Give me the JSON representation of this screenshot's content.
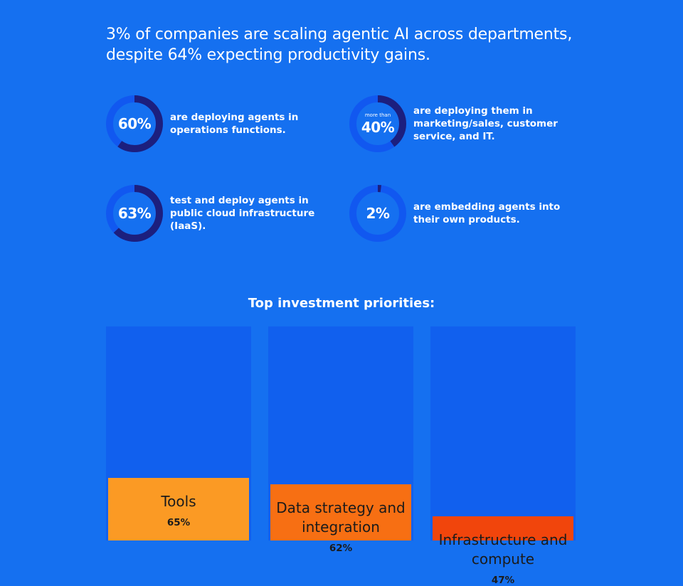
{
  "headline": {
    "line1": "3% of companies are scaling agentic AI across departments,",
    "line2": "despite 64% expecting productivity gains."
  },
  "colors": {
    "background": "#1570f0",
    "ring_track": "#1158f0",
    "ring_fill": "#1c1f7e",
    "bar_track": "#1160ee"
  },
  "stats": [
    {
      "value_label": "60%",
      "prefix": "",
      "fraction": 0.6,
      "description": "are deploying agents in operations functions."
    },
    {
      "value_label": "40%",
      "prefix": "more than",
      "fraction": 0.4,
      "description": "are deploying them in marketing/sales, customer service, and IT."
    },
    {
      "value_label": "63%",
      "prefix": "",
      "fraction": 0.63,
      "description": "test and deploy agents in public cloud infrastructure (IaaS)."
    },
    {
      "value_label": "2%",
      "prefix": "",
      "fraction": 0.02,
      "description": "are embedding agents into their own products."
    }
  ],
  "chart_data": {
    "type": "bar",
    "title": "Top investment priorities:",
    "categories": [
      "Tools",
      "Data strategy and integration",
      "Infrastructure and compute"
    ],
    "values": [
      65,
      62,
      47
    ],
    "value_labels": [
      "65%",
      "62%",
      "47%"
    ],
    "colors": [
      "#fb9a24",
      "#f76f13",
      "#f1450c"
    ],
    "ylim": [
      0,
      100
    ],
    "xlabel": "",
    "ylabel": ""
  }
}
